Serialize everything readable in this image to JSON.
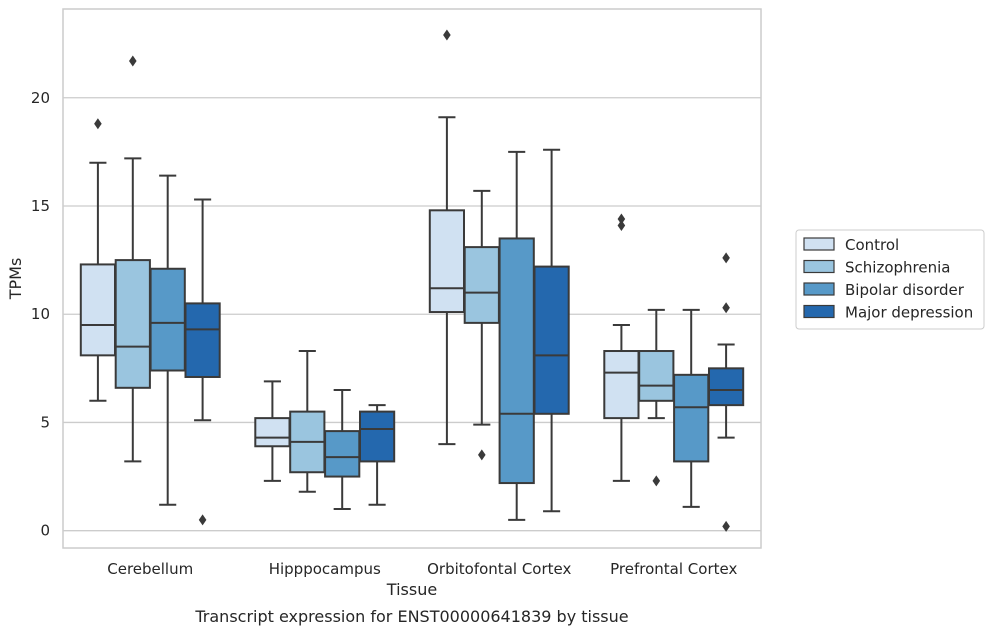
{
  "caption": "Transcript expression for ENST00000641839 by tissue",
  "chart_data": {
    "type": "box",
    "title": "",
    "xlabel": "Tissue",
    "ylabel": "TPMs",
    "ylim": [
      -0.8,
      24.1
    ],
    "yticks": [
      0,
      5,
      10,
      15,
      20
    ],
    "grid": "horizontal",
    "legend_position": "right",
    "categories": [
      "Cerebellum",
      "Hipppocampus",
      "Orbitofontal Cortex",
      "Prefrontal Cortex"
    ],
    "series": [
      {
        "name": "Control",
        "color": "#d0e1f2",
        "boxes": [
          {
            "whisker_low": 6.0,
            "q1": 8.1,
            "median": 9.5,
            "q3": 12.3,
            "whisker_high": 17.0,
            "outliers": [
              18.8
            ]
          },
          {
            "whisker_low": 2.3,
            "q1": 3.9,
            "median": 4.3,
            "q3": 5.2,
            "whisker_high": 6.9,
            "outliers": []
          },
          {
            "whisker_low": 4.0,
            "q1": 10.1,
            "median": 11.2,
            "q3": 14.8,
            "whisker_high": 19.1,
            "outliers": [
              22.9
            ]
          },
          {
            "whisker_low": 2.3,
            "q1": 5.2,
            "median": 7.3,
            "q3": 8.3,
            "whisker_high": 9.5,
            "outliers": [
              14.1,
              14.4
            ]
          }
        ]
      },
      {
        "name": "Schizophrenia",
        "color": "#9ac5df",
        "boxes": [
          {
            "whisker_low": 3.2,
            "q1": 6.6,
            "median": 8.5,
            "q3": 12.5,
            "whisker_high": 17.2,
            "outliers": [
              21.7
            ]
          },
          {
            "whisker_low": 1.8,
            "q1": 2.7,
            "median": 4.1,
            "q3": 5.5,
            "whisker_high": 8.3,
            "outliers": []
          },
          {
            "whisker_low": 4.9,
            "q1": 9.6,
            "median": 11.0,
            "q3": 13.1,
            "whisker_high": 15.7,
            "outliers": [
              3.5
            ]
          },
          {
            "whisker_low": 5.2,
            "q1": 6.0,
            "median": 6.7,
            "q3": 8.3,
            "whisker_high": 10.2,
            "outliers": [
              2.3
            ]
          }
        ]
      },
      {
        "name": "Bipolar disorder",
        "color": "#5799c8",
        "boxes": [
          {
            "whisker_low": 1.2,
            "q1": 7.4,
            "median": 9.6,
            "q3": 12.1,
            "whisker_high": 16.4,
            "outliers": []
          },
          {
            "whisker_low": 1.0,
            "q1": 2.5,
            "median": 3.4,
            "q3": 4.6,
            "whisker_high": 6.5,
            "outliers": []
          },
          {
            "whisker_low": 0.5,
            "q1": 2.2,
            "median": 5.4,
            "q3": 13.5,
            "whisker_high": 17.5,
            "outliers": []
          },
          {
            "whisker_low": 1.1,
            "q1": 3.2,
            "median": 5.7,
            "q3": 7.2,
            "whisker_high": 10.2,
            "outliers": []
          }
        ]
      },
      {
        "name": "Major depression",
        "color": "#2468ae",
        "boxes": [
          {
            "whisker_low": 5.1,
            "q1": 7.1,
            "median": 9.3,
            "q3": 10.5,
            "whisker_high": 15.3,
            "outliers": [
              0.5
            ]
          },
          {
            "whisker_low": 1.2,
            "q1": 3.2,
            "median": 4.7,
            "q3": 5.5,
            "whisker_high": 5.8,
            "outliers": []
          },
          {
            "whisker_low": 0.9,
            "q1": 5.4,
            "median": 8.1,
            "q3": 12.2,
            "whisker_high": 17.6,
            "outliers": []
          },
          {
            "whisker_low": 4.3,
            "q1": 5.8,
            "median": 6.5,
            "q3": 7.5,
            "whisker_high": 8.6,
            "outliers": [
              0.2,
              10.3,
              12.6
            ]
          }
        ]
      }
    ]
  }
}
